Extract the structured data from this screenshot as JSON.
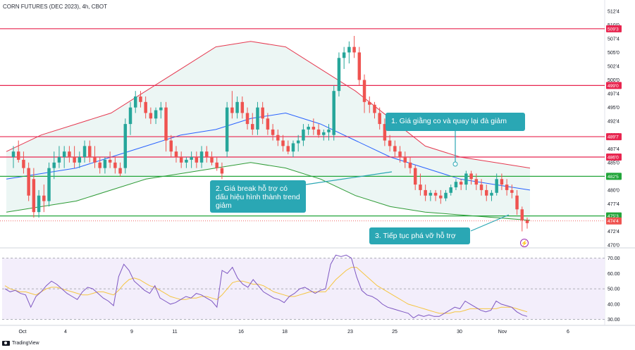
{
  "header": {
    "title": "CORN FUTURES (DEC 2023), 4h, CBOT"
  },
  "branding": {
    "label": "TradingView"
  },
  "annotations": {
    "a1": "1. Giá giằng co và quay lại đà giảm",
    "a2": "2. Giá break hỗ trợ có dấu hiệu hình thành trend giảm",
    "a3": "3. Tiếp tục phá vỡ hỗ trợ"
  },
  "colors": {
    "up": "#26a69a",
    "down": "#ef5350",
    "bb_fill": "#e5f3f0",
    "bb_upper": "#e53950",
    "bb_lower": "#2e9b36",
    "bb_mid": "#2962ff",
    "resistance": "#e8254f",
    "support": "#22a53a",
    "rsi": "#7e57c2",
    "rsi_ma": "#f5c542"
  },
  "chart_data": [
    {
      "type": "candlestick",
      "title": "CORN FUTURES (DEC 2023), 4h, CBOT",
      "x_ticks": [
        "Oct",
        "4",
        "9",
        "11",
        "16",
        "18",
        "23",
        "25",
        "30",
        "Nov",
        "6"
      ],
      "y_ticks": [
        "512'4",
        "510'0",
        "507'4",
        "505'0",
        "502'4",
        "500'0",
        "497'4",
        "495'0",
        "492'4",
        "490'0",
        "487'4",
        "485'0",
        "482'4",
        "480'0",
        "477'4",
        "475'0",
        "472'4",
        "470'0"
      ],
      "ylim": [
        469.5,
        513.5
      ],
      "ohlc": [
        [
          486,
          488,
          484,
          487
        ],
        [
          487,
          489,
          485,
          485.5
        ],
        [
          485.5,
          487,
          483,
          484
        ],
        [
          484,
          485,
          478,
          479
        ],
        [
          482,
          484,
          475,
          476
        ],
        [
          476,
          480,
          475,
          479
        ],
        [
          479,
          481,
          476,
          478
        ],
        [
          478,
          485,
          477,
          484
        ],
        [
          484,
          487,
          482,
          485
        ],
        [
          485,
          488,
          484,
          486
        ],
        [
          486,
          488,
          484,
          487
        ],
        [
          487,
          488,
          485,
          486
        ],
        [
          486,
          488,
          484,
          485
        ],
        [
          485,
          487,
          484,
          486
        ],
        [
          486,
          489,
          485,
          488
        ],
        [
          488,
          489,
          485,
          486
        ],
        [
          486,
          488,
          484,
          485
        ],
        [
          485,
          486,
          483,
          484
        ],
        [
          484,
          486,
          483,
          485.5
        ],
        [
          485.5,
          487,
          484,
          485
        ],
        [
          485,
          486,
          483,
          484
        ],
        [
          484,
          485,
          482.5,
          483
        ],
        [
          484,
          493,
          483,
          492
        ],
        [
          492,
          496,
          490,
          495
        ],
        [
          495,
          498,
          494,
          497
        ],
        [
          497,
          498,
          495,
          496
        ],
        [
          496,
          497,
          493,
          494
        ],
        [
          494,
          495,
          492,
          493
        ],
        [
          493,
          495,
          492,
          494.5
        ],
        [
          494.5,
          496,
          493,
          495
        ],
        [
          495,
          496,
          487,
          489
        ],
        [
          489,
          490,
          486,
          487
        ],
        [
          487,
          488,
          485,
          486
        ],
        [
          486,
          487,
          484,
          485
        ],
        [
          485,
          486,
          484,
          485.5
        ],
        [
          485.5,
          487,
          484,
          486
        ],
        [
          486,
          487,
          484,
          485
        ],
        [
          485,
          488,
          484,
          487
        ],
        [
          487,
          488,
          485,
          486
        ],
        [
          486,
          487,
          484.5,
          485
        ],
        [
          485,
          486,
          483.5,
          484
        ],
        [
          484,
          485,
          482,
          483
        ],
        [
          487,
          496,
          486,
          495
        ],
        [
          495,
          498,
          493,
          494
        ],
        [
          494,
          497,
          493,
          496
        ],
        [
          496,
          497,
          493,
          494
        ],
        [
          494,
          495,
          491,
          492
        ],
        [
          492,
          494,
          490,
          491
        ],
        [
          491,
          496,
          490,
          495
        ],
        [
          495,
          496,
          492,
          493
        ],
        [
          493,
          494,
          490,
          491
        ],
        [
          491,
          492,
          489,
          490
        ],
        [
          490,
          491,
          488,
          489
        ],
        [
          489,
          490,
          487,
          488
        ],
        [
          488,
          489,
          486.5,
          487
        ],
        [
          487,
          489,
          486,
          488.5
        ],
        [
          488.5,
          490,
          487,
          489
        ],
        [
          489,
          492,
          488,
          491
        ],
        [
          491,
          492,
          490,
          491.5
        ],
        [
          491.5,
          493,
          490,
          491
        ],
        [
          491,
          492,
          489.5,
          490
        ],
        [
          490,
          491,
          489,
          490.5
        ],
        [
          490.5,
          492,
          489,
          491
        ],
        [
          490,
          499,
          489,
          498
        ],
        [
          498,
          505,
          497,
          504
        ],
        [
          504,
          506,
          502,
          505
        ],
        [
          505,
          507,
          503,
          506
        ],
        [
          506,
          508,
          504,
          505
        ],
        [
          505,
          506,
          499,
          500
        ],
        [
          500,
          501,
          494,
          496
        ],
        [
          496,
          497,
          494,
          495.5
        ],
        [
          495.5,
          496,
          493,
          494
        ],
        [
          494,
          495,
          491,
          492
        ],
        [
          492,
          493,
          488,
          489
        ],
        [
          489,
          490,
          487,
          488
        ],
        [
          488,
          489,
          486,
          487
        ],
        [
          487,
          488,
          485,
          486
        ],
        [
          486,
          487,
          484,
          485
        ],
        [
          485,
          486,
          483,
          484
        ],
        [
          484,
          484.5,
          480,
          481
        ],
        [
          481,
          483,
          479,
          480
        ],
        [
          480,
          481,
          478,
          479
        ],
        [
          479,
          480,
          478,
          479.5
        ],
        [
          479.5,
          480,
          478,
          479
        ],
        [
          479,
          480,
          477.5,
          478.5
        ],
        [
          478.5,
          480,
          478,
          479.5
        ],
        [
          479.5,
          481,
          479,
          480.5
        ],
        [
          480.5,
          482,
          480,
          481.5
        ],
        [
          481.5,
          482,
          480,
          481
        ],
        [
          481,
          483.5,
          480,
          483
        ],
        [
          483,
          483.5,
          481,
          482
        ],
        [
          482,
          483,
          480,
          481
        ],
        [
          481,
          482,
          479,
          480
        ],
        [
          480,
          481,
          478,
          479
        ],
        [
          479,
          480,
          478,
          479.5
        ],
        [
          479.5,
          483,
          479,
          482
        ],
        [
          482,
          483,
          480,
          481
        ],
        [
          481,
          482,
          479,
          480
        ],
        [
          480,
          481,
          478.5,
          479.5
        ],
        [
          479,
          480,
          475.5,
          476.5
        ],
        [
          476.5,
          477,
          472.5,
          474.5
        ],
        [
          474.5,
          475,
          473,
          474
        ]
      ],
      "bollinger": {
        "upper": [
          487,
          490,
          492,
          494,
          498,
          502,
          506,
          507,
          506,
          502,
          498,
          493,
          488,
          486,
          485,
          484
        ],
        "mid": [
          482,
          483,
          484,
          486,
          488,
          490,
          491,
          493,
          494,
          492,
          489,
          486,
          484,
          482,
          481,
          480
        ],
        "lower": [
          476,
          477,
          478,
          480,
          482,
          483,
          484,
          485,
          484,
          482,
          479,
          477,
          476,
          475.5,
          475,
          474.5
        ]
      },
      "levels": [
        {
          "price": 509.3,
          "label": "509'3",
          "color": "#e8254f"
        },
        {
          "price": 499.0,
          "label": "499'0",
          "color": "#e8254f"
        },
        {
          "price": 489.7,
          "label": "489'7",
          "color": "#e8254f"
        },
        {
          "price": 486.0,
          "label": "486'0",
          "color": "#e8254f"
        },
        {
          "price": 482.5,
          "label": "482'5",
          "color": "#22a53a"
        },
        {
          "price": 475.3,
          "label": "475'3",
          "color": "#22a53a"
        }
      ],
      "last_price": {
        "price": 474.4,
        "label": "474'4"
      }
    },
    {
      "type": "line",
      "title": "RSI",
      "y_ticks": [
        "70.00",
        "60.00",
        "50.00",
        "40.00",
        "30.00"
      ],
      "ylim": [
        28,
        73
      ],
      "rsi": [
        50,
        48,
        49,
        47,
        46,
        38,
        45,
        48,
        52,
        55,
        53,
        50,
        47,
        45,
        43,
        48,
        51,
        50,
        47,
        44,
        42,
        39,
        58,
        66,
        62,
        55,
        52,
        49,
        47,
        52,
        44,
        42,
        40,
        41,
        43,
        45,
        44,
        47,
        46,
        44,
        42,
        38,
        62,
        60,
        64,
        57,
        53,
        51,
        56,
        52,
        48,
        46,
        44,
        43,
        41,
        45,
        47,
        50,
        51,
        49,
        47,
        49,
        50,
        66,
        72,
        71,
        72,
        70,
        58,
        49,
        46,
        45,
        43,
        40,
        38,
        37,
        36,
        35,
        34,
        31,
        33,
        32,
        33,
        32,
        32,
        34,
        36,
        38,
        37,
        42,
        40,
        38,
        36,
        35,
        36,
        42,
        40,
        39,
        38,
        35,
        33,
        32
      ],
      "rsi_ma": [
        52,
        50,
        49,
        48,
        48,
        47,
        46,
        48,
        50,
        51,
        51,
        50,
        49,
        48,
        47,
        46,
        46,
        47,
        48,
        48,
        47,
        46,
        49,
        53,
        56,
        57,
        56,
        54,
        52,
        51,
        49,
        47,
        45,
        44,
        43,
        43,
        44,
        44,
        45,
        45,
        44,
        43,
        46,
        50,
        54,
        55,
        55,
        54,
        53,
        53,
        52,
        50,
        48,
        47,
        46,
        45,
        45,
        46,
        47,
        48,
        48,
        48,
        48,
        52,
        56,
        59,
        62,
        64,
        64,
        61,
        58,
        55,
        52,
        50,
        48,
        46,
        44,
        42,
        40,
        39,
        38,
        37,
        36,
        35,
        34,
        34,
        34,
        35,
        35,
        36,
        37,
        37,
        37,
        37,
        37,
        37,
        38,
        38,
        38,
        37,
        36,
        35
      ]
    }
  ]
}
